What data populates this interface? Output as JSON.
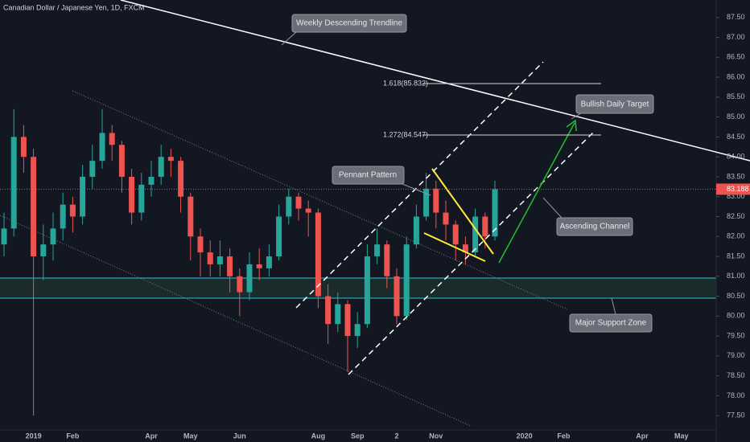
{
  "chart_data": {
    "type": "candlestick",
    "title": "Canadian Dollar / Japanese Yen, 1D, FXCM",
    "categories": [
      null,
      null,
      null,
      "2019",
      null,
      null,
      null,
      "Feb",
      null,
      null,
      null,
      null,
      null,
      null,
      null,
      "Apr",
      null,
      null,
      null,
      "May",
      null,
      null,
      null,
      null,
      "Jun",
      null,
      null,
      null,
      null,
      null,
      null,
      null,
      "Aug",
      null,
      null,
      null,
      "Sep",
      null,
      null,
      null,
      "2",
      null,
      null,
      null,
      "Nov",
      null,
      null,
      null,
      null,
      null,
      null,
      null,
      null,
      "2020",
      null,
      null,
      null,
      "Feb",
      null,
      null,
      null,
      null,
      null,
      null,
      null,
      "Apr",
      null,
      null,
      null,
      "May",
      null,
      null,
      null
    ],
    "open": [
      81.8,
      82.2,
      84.5,
      84.0,
      81.5,
      81.8,
      82.2,
      82.8,
      82.5,
      83.5,
      83.9,
      84.6,
      84.3,
      83.5,
      82.6,
      83.3,
      83.5,
      84.0,
      83.9,
      83.0,
      82.0,
      81.6,
      81.3,
      81.5,
      81.0,
      80.6,
      81.3,
      81.2,
      81.5,
      82.5,
      83.0,
      82.7,
      82.6,
      80.5,
      79.8,
      80.3,
      79.5,
      79.8,
      81.5,
      81.8,
      81.0,
      80.0,
      81.8,
      82.5,
      83.2,
      82.6,
      82.3,
      81.8,
      81.6,
      82.5,
      82.0,
      null,
      null,
      null,
      null,
      null,
      null,
      null,
      null,
      null,
      null,
      null,
      null,
      null,
      null,
      null,
      null,
      null,
      null,
      null,
      null,
      null,
      null
    ],
    "high": [
      82.6,
      85.2,
      84.8,
      84.2,
      82.3,
      82.6,
      83.1,
      83.0,
      83.8,
      84.3,
      85.2,
      84.8,
      84.4,
      83.7,
      83.6,
      83.9,
      84.3,
      84.2,
      84.0,
      83.1,
      82.2,
      81.9,
      81.9,
      81.7,
      81.2,
      81.6,
      81.7,
      81.8,
      82.8,
      83.2,
      83.1,
      82.9,
      82.7,
      80.8,
      80.6,
      80.4,
      80.1,
      81.8,
      82.2,
      81.9,
      81.2,
      82.0,
      82.8,
      83.6,
      83.4,
      82.9,
      82.4,
      82.0,
      82.7,
      82.6,
      83.4,
      null,
      null,
      null,
      null,
      null,
      null,
      null,
      null,
      null,
      null,
      null,
      null,
      null,
      null,
      null,
      null,
      null,
      null,
      null,
      null,
      null,
      null
    ],
    "low": [
      81.5,
      82.0,
      83.6,
      77.5,
      80.9,
      81.4,
      81.9,
      82.1,
      82.3,
      83.2,
      83.7,
      83.9,
      83.1,
      82.3,
      82.4,
      83.0,
      83.3,
      83.5,
      82.6,
      81.4,
      81.0,
      81.0,
      81.0,
      80.6,
      80.0,
      80.4,
      80.9,
      81.0,
      81.4,
      82.3,
      82.4,
      82.0,
      80.2,
      79.3,
      79.6,
      78.6,
      79.2,
      79.7,
      81.3,
      80.7,
      79.8,
      79.9,
      81.7,
      82.4,
      82.2,
      81.9,
      81.4,
      81.3,
      81.5,
      81.7,
      81.9,
      null,
      null,
      null,
      null,
      null,
      null,
      null,
      null,
      null,
      null,
      null,
      null,
      null,
      null,
      null,
      null,
      null,
      null,
      null,
      null,
      null,
      null
    ],
    "close": [
      82.2,
      84.5,
      84.0,
      81.5,
      81.8,
      82.2,
      82.8,
      82.5,
      83.5,
      83.9,
      84.6,
      84.3,
      83.5,
      82.6,
      83.3,
      83.5,
      84.0,
      83.9,
      83.0,
      82.0,
      81.6,
      81.3,
      81.5,
      81.0,
      80.6,
      81.3,
      81.2,
      81.5,
      82.5,
      83.0,
      82.7,
      82.6,
      80.5,
      79.8,
      80.3,
      79.5,
      79.8,
      81.5,
      81.8,
      81.0,
      80.0,
      81.8,
      82.5,
      83.2,
      82.6,
      82.3,
      81.8,
      81.6,
      82.5,
      82.0,
      83.188,
      null,
      null,
      null,
      null,
      null,
      null,
      null,
      null,
      null,
      null,
      null,
      null,
      null,
      null,
      null,
      null,
      null,
      null,
      null,
      null,
      null,
      null
    ],
    "up_color": "#26a69a",
    "down_color": "#ef5350",
    "ylim": [
      77.14,
      87.94
    ],
    "yticks": [
      {
        "value": 77.5,
        "label": "77.50"
      },
      {
        "value": 78,
        "label": "78.00"
      },
      {
        "value": 78.5,
        "label": "78.50"
      },
      {
        "value": 79,
        "label": "79.00"
      },
      {
        "value": 79.5,
        "label": "79.50"
      },
      {
        "value": 80,
        "label": "80.00"
      },
      {
        "value": 80.5,
        "label": "80.50"
      },
      {
        "value": 81,
        "label": "81.00"
      },
      {
        "value": 81.5,
        "label": "81.50"
      },
      {
        "value": 82,
        "label": "82.00"
      },
      {
        "value": 82.5,
        "label": "82.50"
      },
      {
        "value": 83,
        "label": "83.00"
      },
      {
        "value": 83.5,
        "label": "83.50"
      },
      {
        "value": 84,
        "label": "84.00"
      },
      {
        "value": 84.5,
        "label": "84.50"
      },
      {
        "value": 85,
        "label": "85.00"
      },
      {
        "value": 85.5,
        "label": "85.50"
      },
      {
        "value": 86,
        "label": "86.00"
      },
      {
        "value": 86.5,
        "label": "86.50"
      },
      {
        "value": 87,
        "label": "87.00"
      },
      {
        "value": 87.5,
        "label": "87.50"
      }
    ],
    "last_price": 83.188,
    "fib_labels": [
      "1.618(85.832)",
      "1.272(84.547)"
    ],
    "annotations": [
      "Weekly Descending Trendline",
      "Bullish Daily Target",
      "Pennant Pattern",
      "Ascending Channel",
      "Major Support Zone"
    ]
  }
}
